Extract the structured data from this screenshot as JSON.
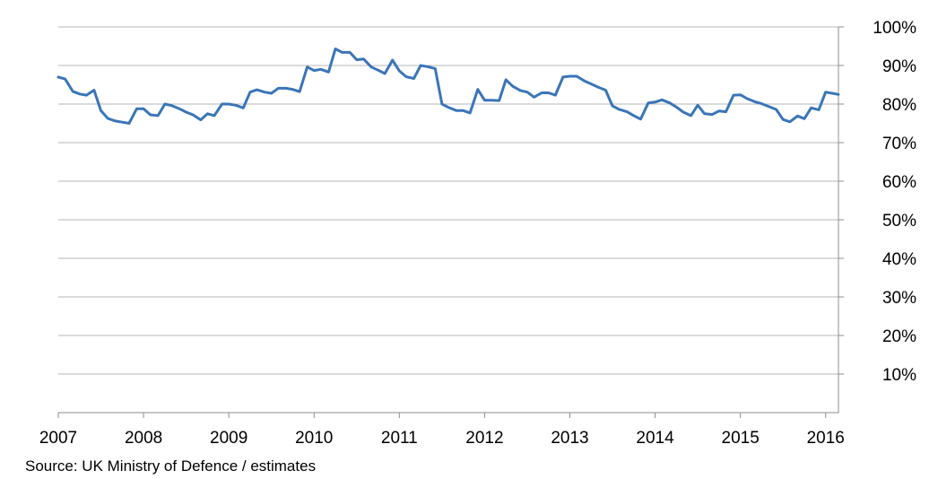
{
  "colors": {
    "line": "#3a75b8",
    "grid": "#b7b7b7",
    "axis": "#8c8c8c",
    "text": "#000000"
  },
  "source_note": "Source: UK Ministry of Defence / estimates",
  "chart_data": {
    "type": "line",
    "title": "",
    "xlabel": "",
    "ylabel": "",
    "xlim": [
      2007,
      2016.15
    ],
    "ylim": [
      0,
      100
    ],
    "y_axis_position": "right",
    "grid": "horizontal",
    "legend": "none",
    "x_ticks": [
      2007,
      2008,
      2009,
      2010,
      2011,
      2012,
      2013,
      2014,
      2015,
      2016
    ],
    "x_tick_labels": [
      "2007",
      "2008",
      "2009",
      "2010",
      "2011",
      "2012",
      "2013",
      "2014",
      "2015",
      "2016"
    ],
    "y_ticks": [
      10,
      20,
      30,
      40,
      50,
      60,
      70,
      80,
      90,
      100
    ],
    "y_tick_labels": [
      "10%",
      "20%",
      "30%",
      "40%",
      "50%",
      "60%",
      "70%",
      "80%",
      "90%",
      "100%"
    ],
    "series": [
      {
        "x": [
          2007.0,
          2007.08,
          2007.17,
          2007.25,
          2007.33,
          2007.42,
          2007.5,
          2007.58,
          2007.67,
          2007.75,
          2007.83,
          2007.92,
          2008.0,
          2008.08,
          2008.17,
          2008.25,
          2008.33,
          2008.42,
          2008.5,
          2008.58,
          2008.67,
          2008.75,
          2008.83,
          2008.92,
          2009.0,
          2009.08,
          2009.17,
          2009.25,
          2009.33,
          2009.42,
          2009.5,
          2009.58,
          2009.67,
          2009.75,
          2009.83,
          2009.92,
          2010.0,
          2010.08,
          2010.17,
          2010.25,
          2010.33,
          2010.42,
          2010.5,
          2010.58,
          2010.67,
          2010.75,
          2010.83,
          2010.92,
          2011.0,
          2011.08,
          2011.17,
          2011.25,
          2011.33,
          2011.42,
          2011.5,
          2011.58,
          2011.67,
          2011.75,
          2011.83,
          2011.92,
          2012.0,
          2012.08,
          2012.17,
          2012.25,
          2012.33,
          2012.42,
          2012.5,
          2012.58,
          2012.67,
          2012.75,
          2012.83,
          2012.92,
          2013.0,
          2013.08,
          2013.17,
          2013.25,
          2013.33,
          2013.42,
          2013.5,
          2013.58,
          2013.67,
          2013.75,
          2013.83,
          2013.92,
          2014.0,
          2014.08,
          2014.17,
          2014.25,
          2014.33,
          2014.42,
          2014.5,
          2014.58,
          2014.67,
          2014.75,
          2014.83,
          2014.92,
          2015.0,
          2015.08,
          2015.17,
          2015.25,
          2015.33,
          2015.42,
          2015.5,
          2015.58,
          2015.67,
          2015.75,
          2015.83,
          2015.92,
          2016.0,
          2016.08,
          2016.15
        ],
        "values": [
          87.0,
          86.5,
          83.3,
          82.6,
          82.3,
          83.6,
          78.3,
          76.3,
          75.6,
          75.3,
          75.0,
          78.8,
          78.8,
          77.2,
          77.0,
          80.0,
          79.6,
          78.8,
          77.9,
          77.2,
          75.9,
          77.5,
          77.0,
          80.0,
          80.0,
          79.7,
          79.0,
          83.1,
          83.7,
          83.1,
          82.8,
          84.1,
          84.1,
          83.8,
          83.2,
          89.6,
          88.7,
          89.0,
          88.3,
          94.3,
          93.4,
          93.4,
          91.5,
          91.7,
          89.6,
          88.8,
          87.9,
          91.4,
          88.6,
          87.1,
          86.6,
          90.0,
          89.7,
          89.2,
          80.0,
          79.1,
          78.3,
          78.3,
          77.7,
          83.8,
          81.0,
          81.0,
          80.9,
          86.3,
          84.6,
          83.5,
          83.1,
          81.8,
          82.9,
          82.9,
          82.3,
          87.0,
          87.2,
          87.2,
          86.0,
          85.2,
          84.4,
          83.6,
          79.5,
          78.6,
          78.0,
          77.0,
          76.1,
          80.3,
          80.5,
          81.1,
          80.3,
          79.2,
          77.9,
          77.0,
          79.7,
          77.5,
          77.3,
          78.2,
          78.0,
          82.3,
          82.4,
          81.4,
          80.6,
          80.1,
          79.4,
          78.6,
          76.0,
          75.4,
          76.9,
          76.2,
          79.0,
          78.5,
          83.1,
          82.8,
          82.5
        ]
      }
    ]
  }
}
